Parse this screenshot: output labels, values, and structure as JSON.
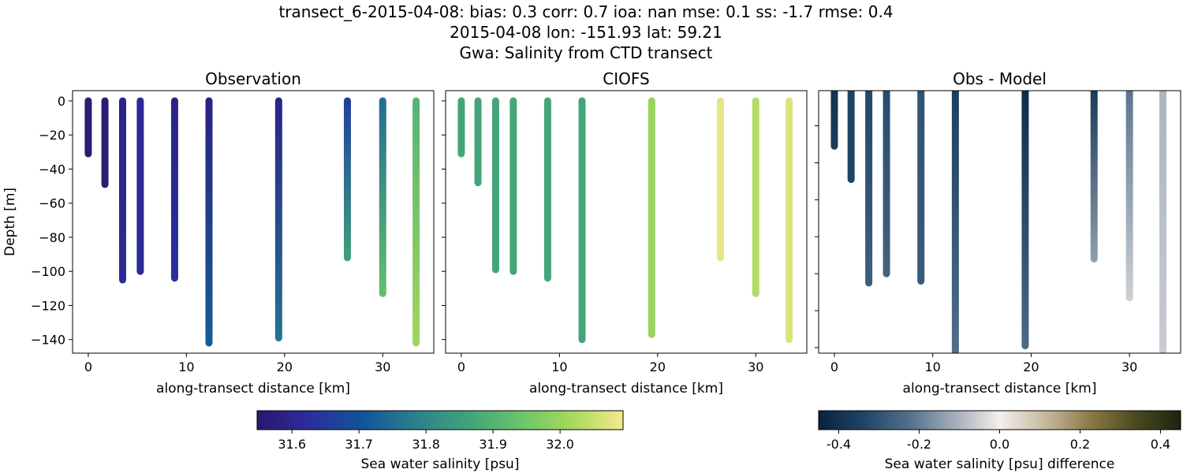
{
  "title_lines": [
    "transect_6-2015-04-08: bias: 0.3  corr: 0.7  ioa: nan  mse: 0.1  ss: -1.7  rmse: 0.4",
    "2015-04-08 lon: -151.93 lat: 59.21",
    "Gwa: Salinity from CTD transect"
  ],
  "chart_data": [
    {
      "type": "scatter",
      "title": "Observation",
      "xlabel": "along-transect distance [km]",
      "ylabel": "Depth [m]",
      "xlim": [
        -1.6,
        35.2
      ],
      "ylim": [
        -148,
        6
      ],
      "xticks": [
        0,
        10,
        20,
        30
      ],
      "yticks": [
        0,
        -20,
        -40,
        -60,
        -80,
        -100,
        -120,
        -140
      ],
      "show_yticklabels": true,
      "colormap": "haline",
      "stations": [
        {
          "x": 0,
          "depth": -31,
          "top": 31.56,
          "bottom": 31.56
        },
        {
          "x": 1.7,
          "depth": -49,
          "top": 31.56,
          "bottom": 31.56
        },
        {
          "x": 3.5,
          "depth": -105,
          "top": 31.59,
          "bottom": 31.61
        },
        {
          "x": 5.3,
          "depth": -100,
          "top": 31.61,
          "bottom": 31.62
        },
        {
          "x": 8.8,
          "depth": -104,
          "top": 31.59,
          "bottom": 31.63
        },
        {
          "x": 12.3,
          "depth": -142,
          "top": 31.58,
          "bottom": 31.72
        },
        {
          "x": 19.4,
          "depth": -139,
          "top": 31.59,
          "bottom": 31.76
        },
        {
          "x": 26.4,
          "depth": -92,
          "top": 31.66,
          "bottom": 31.86
        },
        {
          "x": 30.0,
          "depth": -113,
          "top": 31.75,
          "bottom": 31.93
        },
        {
          "x": 33.4,
          "depth": -142,
          "top": 31.9,
          "bottom": 32.01
        }
      ]
    },
    {
      "type": "scatter",
      "title": "CIOFS",
      "xlabel": "along-transect distance [km]",
      "xlim": [
        -1.6,
        35.2
      ],
      "ylim": [
        -148,
        6
      ],
      "xticks": [
        0,
        10,
        20,
        30
      ],
      "yticks": [
        0,
        -20,
        -40,
        -60,
        -80,
        -100,
        -120,
        -140
      ],
      "show_yticklabels": false,
      "colormap": "haline",
      "stations": [
        {
          "x": 0,
          "depth": -31,
          "top": 31.87,
          "bottom": 31.87
        },
        {
          "x": 1.7,
          "depth": -48,
          "top": 31.87,
          "bottom": 31.87
        },
        {
          "x": 3.5,
          "depth": -99,
          "top": 31.87,
          "bottom": 31.87
        },
        {
          "x": 5.3,
          "depth": -100,
          "top": 31.87,
          "bottom": 31.87
        },
        {
          "x": 8.8,
          "depth": -104,
          "top": 31.87,
          "bottom": 31.87
        },
        {
          "x": 12.3,
          "depth": -140,
          "top": 31.87,
          "bottom": 31.87
        },
        {
          "x": 19.4,
          "depth": -137,
          "top": 32.0,
          "bottom": 32.0
        },
        {
          "x": 26.4,
          "depth": -92,
          "top": 32.08,
          "bottom": 32.08
        },
        {
          "x": 30.0,
          "depth": -113,
          "top": 32.03,
          "bottom": 32.03
        },
        {
          "x": 33.4,
          "depth": -140,
          "top": 32.07,
          "bottom": 32.07
        }
      ]
    },
    {
      "type": "scatter",
      "title": "Obs - Model",
      "xlabel": "along-transect distance [km]",
      "xlim": [
        -1.6,
        35.2
      ],
      "ylim": [
        -143,
        -1
      ],
      "xticks": [
        0,
        10,
        20,
        30
      ],
      "yticks": [
        -20,
        -40,
        -60,
        -80,
        -100,
        -120,
        -140
      ],
      "show_yticklabels": false,
      "colormap": "diff",
      "stations": [
        {
          "x": 0,
          "depth": -31,
          "top": -0.4,
          "bottom": -0.36
        },
        {
          "x": 1.7,
          "depth": -49,
          "top": -0.34,
          "bottom": -0.34
        },
        {
          "x": 3.5,
          "depth": -105,
          "top": -0.33,
          "bottom": -0.27
        },
        {
          "x": 5.3,
          "depth": -100,
          "top": -0.32,
          "bottom": -0.26
        },
        {
          "x": 8.8,
          "depth": -104,
          "top": -0.3,
          "bottom": -0.28
        },
        {
          "x": 12.3,
          "depth": -142,
          "top": -0.36,
          "bottom": -0.23
        },
        {
          "x": 19.4,
          "depth": -139,
          "top": -0.42,
          "bottom": -0.24
        },
        {
          "x": 26.4,
          "depth": -92,
          "top": -0.38,
          "bottom": -0.14
        },
        {
          "x": 30.0,
          "depth": -113,
          "top": -0.22,
          "bottom": -0.05
        },
        {
          "x": 33.4,
          "depth": -142,
          "top": -0.1,
          "bottom": -0.06
        }
      ]
    }
  ],
  "colorbars": [
    {
      "label": "Sea water salinity [psu]",
      "range": [
        31.548,
        32.094
      ],
      "ticks": [
        "31.6",
        "31.7",
        "31.8",
        "31.9",
        "32.0"
      ],
      "colormap": "haline"
    },
    {
      "label": "Sea water salinity [psu] difference",
      "range": [
        -0.45,
        0.45
      ],
      "ticks": [
        "-0.4",
        "-0.2",
        "0.0",
        "0.2",
        "0.4"
      ],
      "colormap": "diff"
    }
  ],
  "colormaps": {
    "haline": [
      "#2a186c",
      "#2b2d9e",
      "#10539a",
      "#2c7f8c",
      "#40a17c",
      "#68c46a",
      "#a6d85c",
      "#f4ea8c"
    ],
    "diff": [
      "#08233d",
      "#1f4566",
      "#52708c",
      "#a4adb8",
      "#f2efed",
      "#c8b99e",
      "#8b7a46",
      "#4b4a20",
      "#1c2410"
    ]
  }
}
